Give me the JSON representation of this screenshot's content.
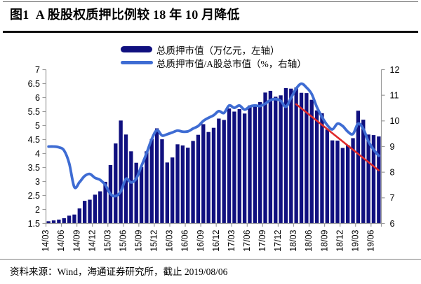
{
  "page": {
    "title": "图1  A 股股权质押比例较 18 年 10 月降低",
    "source_note": "资料来源：Wind，海通证券研究所，截止 2019/08/06"
  },
  "legend": {
    "items": [
      {
        "label": "总质押市值（万亿元，左轴）",
        "swatch": "bar",
        "color": "#10107f"
      },
      {
        "label": "总质押市值/A股总市值（%，右轴）",
        "swatch": "line",
        "color": "#3e6cd3"
      }
    ]
  },
  "colors": {
    "bar": "#10107f",
    "ratio_line": "#3e6cd3",
    "trend_line": "#df2b2b",
    "axis": "#9b9b9b"
  },
  "chart_data": {
    "type": "bar",
    "title": "图1  A 股股权质押比例较 18 年 10 月降低",
    "xlabel": "",
    "ylabel_left": "总质押市值（万亿元）",
    "ylabel_right": "总质押市值/A股总市值（%）",
    "left_axis": {
      "min": 1.5,
      "max": 7,
      "step": 0.5,
      "tick_labels": [
        "1.5",
        "2",
        "2.5",
        "3",
        "3.5",
        "4",
        "4.5",
        "5",
        "5.5",
        "6",
        "6.5",
        "7"
      ]
    },
    "right_axis": {
      "min": 6,
      "max": 12,
      "step": 1,
      "tick_labels": [
        "6",
        "7",
        "8",
        "9",
        "10",
        "11",
        "12"
      ]
    },
    "x_tick_labels": [
      "14/03",
      "14/06",
      "14/09",
      "14/12",
      "15/03",
      "15/06",
      "15/09",
      "15/12",
      "16/03",
      "16/06",
      "16/09",
      "16/12",
      "17/03",
      "17/06",
      "17/09",
      "17/12",
      "18/03",
      "18/06",
      "18/09",
      "18/12",
      "19/03",
      "19/06"
    ],
    "categories": [
      "14/03",
      "14/04",
      "14/05",
      "14/06",
      "14/07",
      "14/08",
      "14/09",
      "14/10",
      "14/11",
      "14/12",
      "15/01",
      "15/02",
      "15/03",
      "15/04",
      "15/05",
      "15/06",
      "15/07",
      "15/08",
      "15/09",
      "15/10",
      "15/11",
      "15/12",
      "16/01",
      "16/02",
      "16/03",
      "16/04",
      "16/05",
      "16/06",
      "16/07",
      "16/08",
      "16/09",
      "16/10",
      "16/11",
      "16/12",
      "17/01",
      "17/02",
      "17/03",
      "17/04",
      "17/05",
      "17/06",
      "17/07",
      "17/08",
      "17/09",
      "17/10",
      "17/11",
      "17/12",
      "18/01",
      "18/02",
      "18/03",
      "18/04",
      "18/05",
      "18/06",
      "18/07",
      "18/08",
      "18/09",
      "18/10",
      "18/11",
      "18/12",
      "19/01",
      "19/02",
      "19/03",
      "19/04",
      "19/05",
      "19/06",
      "19/07"
    ],
    "series": [
      {
        "name": "总质押市值（万亿元，左轴）",
        "type": "bar",
        "axis": "left",
        "color": "#10107f",
        "values": [
          1.58,
          1.61,
          1.64,
          1.69,
          1.78,
          1.82,
          2.04,
          2.31,
          2.35,
          2.53,
          2.65,
          2.99,
          3.59,
          4.36,
          5.18,
          4.68,
          4.08,
          3.67,
          3.52,
          4.08,
          4.52,
          4.9,
          4.51,
          3.68,
          3.86,
          4.33,
          4.29,
          4.21,
          4.45,
          4.67,
          5.05,
          4.77,
          4.92,
          5.25,
          5.2,
          5.61,
          5.5,
          5.59,
          5.43,
          5.72,
          5.68,
          5.84,
          6.18,
          6.24,
          6.03,
          6.08,
          6.34,
          6.32,
          6.36,
          6.17,
          6.16,
          5.92,
          5.54,
          5.44,
          4.86,
          4.47,
          4.46,
          4.2,
          4.3,
          4.55,
          5.53,
          5.21,
          4.68,
          4.66,
          4.61
        ]
      },
      {
        "name": "总质押市值/A股总市值（%，右轴）",
        "type": "line",
        "axis": "right",
        "color": "#3e6cd3",
        "values": [
          9.0,
          9.0,
          8.97,
          8.85,
          8.35,
          7.42,
          7.61,
          7.85,
          7.93,
          7.78,
          7.7,
          7.5,
          7.15,
          7.07,
          7.25,
          7.74,
          7.6,
          7.75,
          8.24,
          8.74,
          9.29,
          9.64,
          9.43,
          9.48,
          9.55,
          9.62,
          9.58,
          9.59,
          9.7,
          9.8,
          10.0,
          10.12,
          10.22,
          10.38,
          10.31,
          10.6,
          10.51,
          10.6,
          10.44,
          10.56,
          10.6,
          10.58,
          10.67,
          10.81,
          10.85,
          10.78,
          10.55,
          10.9,
          11.26,
          11.45,
          11.3,
          11.05,
          10.54,
          10.15,
          9.84,
          9.67,
          9.89,
          9.8,
          9.58,
          9.49,
          9.89,
          9.69,
          9.2,
          8.88,
          8.64
        ]
      },
      {
        "name": "下降趋势线",
        "type": "trend",
        "axis": "right",
        "color": "#df2b2b",
        "points": [
          {
            "category": "18/03",
            "value": 10.65
          },
          {
            "category": "19/07",
            "value": 8.07
          }
        ]
      }
    ]
  }
}
